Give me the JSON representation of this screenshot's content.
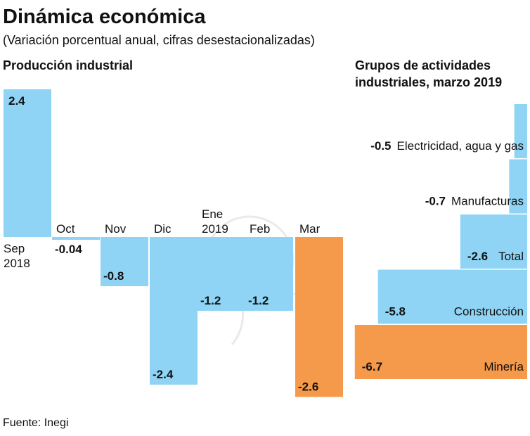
{
  "title": "Dinámica económica",
  "subtitle": "(Variación porcentual anual, cifras desestacionalizadas)",
  "source": "Fuente: Inegi",
  "colors": {
    "blue": "#8fd4f5",
    "orange": "#f5994a"
  },
  "chart_data": [
    {
      "type": "bar",
      "title": "Producción industrial",
      "categories": [
        [
          "Sep",
          "2018"
        ],
        [
          "Oct"
        ],
        [
          "Nov"
        ],
        [
          "Dic"
        ],
        [
          "Ene",
          "2019"
        ],
        [
          "Feb"
        ],
        [
          "Mar"
        ]
      ],
      "values": [
        2.4,
        -0.04,
        -0.8,
        -2.4,
        -1.2,
        -1.2,
        -2.6
      ],
      "value_labels": [
        "2.4",
        "-0.04",
        "-0.8",
        "-2.4",
        "-1.2",
        "-1.2",
        "-2.6"
      ],
      "highlight": [
        false,
        false,
        false,
        false,
        false,
        false,
        true
      ],
      "ylim": [
        -2.6,
        2.4
      ]
    },
    {
      "type": "bar",
      "orientation": "horizontal",
      "title": [
        "Grupos de actividades",
        "industriales, marzo 2019"
      ],
      "categories": [
        "Electricidad, agua y gas",
        "Manufacturas",
        "Total",
        "Construcción",
        "Minería"
      ],
      "values": [
        -0.5,
        -0.7,
        -2.6,
        -5.8,
        -6.7
      ],
      "value_labels": [
        "-0.5",
        "-0.7",
        "-2.6",
        "-5.8",
        "-6.7"
      ],
      "highlight": [
        false,
        false,
        false,
        false,
        true
      ],
      "xlim": [
        -6.7,
        0
      ]
    }
  ]
}
